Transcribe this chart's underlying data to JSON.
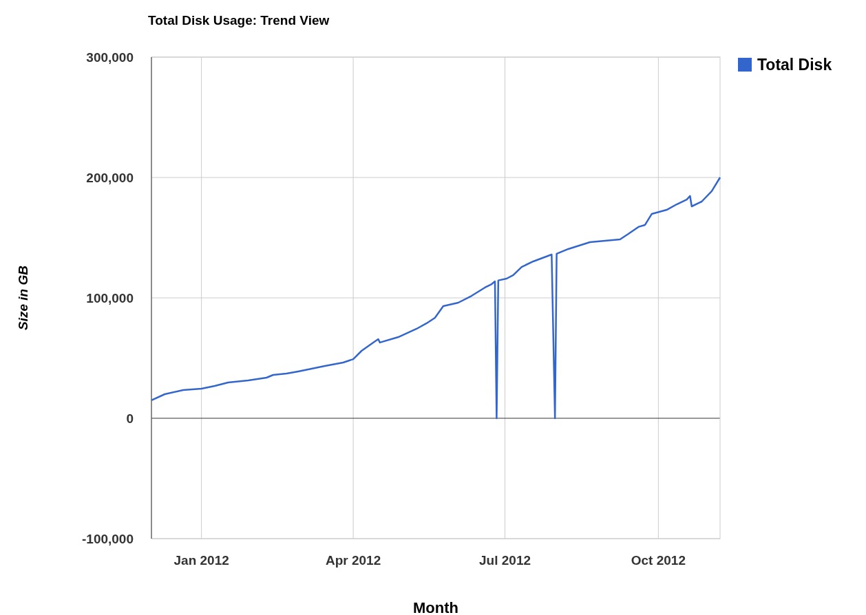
{
  "chart_data": {
    "type": "line",
    "title": "Total Disk Usage: Trend View",
    "xlabel": "Month",
    "ylabel": "Size in GB",
    "x": [
      "2011-12-02",
      "2011-12-10",
      "2011-12-21",
      "2012-01-01",
      "2012-01-09",
      "2012-01-17",
      "2012-01-29",
      "2012-02-09",
      "2012-02-13",
      "2012-02-21",
      "2012-02-28",
      "2012-03-03",
      "2012-03-15",
      "2012-03-26",
      "2012-04-01",
      "2012-04-06",
      "2012-04-13",
      "2012-04-16",
      "2012-04-17",
      "2012-04-28",
      "2012-05-09",
      "2012-05-15",
      "2012-05-20",
      "2012-05-25",
      "2012-06-03",
      "2012-06-11",
      "2012-06-19",
      "2012-06-23",
      "2012-06-25",
      "2012-06-26",
      "2012-06-27",
      "2012-07-02",
      "2012-07-06",
      "2012-07-11",
      "2012-07-18",
      "2012-07-29",
      "2012-07-31",
      "2012-08-01",
      "2012-08-08",
      "2012-08-21",
      "2012-09-08",
      "2012-09-13",
      "2012-09-19",
      "2012-09-23",
      "2012-09-27",
      "2012-10-06",
      "2012-10-12",
      "2012-10-18",
      "2012-10-20",
      "2012-10-21",
      "2012-10-27",
      "2012-11-02",
      "2012-11-07"
    ],
    "series": [
      {
        "name": "Total Disk",
        "color": "#3366cc",
        "values": [
          14900,
          20000,
          23400,
          24600,
          26900,
          29700,
          31400,
          33700,
          36000,
          37100,
          38900,
          40000,
          43400,
          46300,
          49100,
          56000,
          62900,
          65700,
          62900,
          67400,
          74300,
          78900,
          83400,
          93100,
          96000,
          101700,
          108600,
          111400,
          113700,
          0,
          114500,
          116000,
          118900,
          125700,
          130300,
          136000,
          0,
          136600,
          140600,
          146300,
          148600,
          153100,
          158900,
          160600,
          169700,
          173100,
          177700,
          181700,
          184600,
          176000,
          180000,
          188600,
          200000
        ]
      }
    ],
    "xlim": [
      "2011-12-02",
      "2012-11-07"
    ],
    "xticks": [
      {
        "value": "2012-01-01",
        "label": "Jan 2012"
      },
      {
        "value": "2012-04-01",
        "label": "Apr 2012"
      },
      {
        "value": "2012-07-01",
        "label": "Jul 2012"
      },
      {
        "value": "2012-10-01",
        "label": "Oct 2012"
      }
    ],
    "ylim": [
      -100000,
      300000
    ],
    "yticks": [
      {
        "value": -100000,
        "label": "-100,000"
      },
      {
        "value": 0,
        "label": "0"
      },
      {
        "value": 100000,
        "label": "100,000"
      },
      {
        "value": 200000,
        "label": "200,000"
      },
      {
        "value": 300000,
        "label": "300,000"
      }
    ],
    "grid": true,
    "legend": "top right",
    "marker": "none",
    "line_style": "solid"
  }
}
